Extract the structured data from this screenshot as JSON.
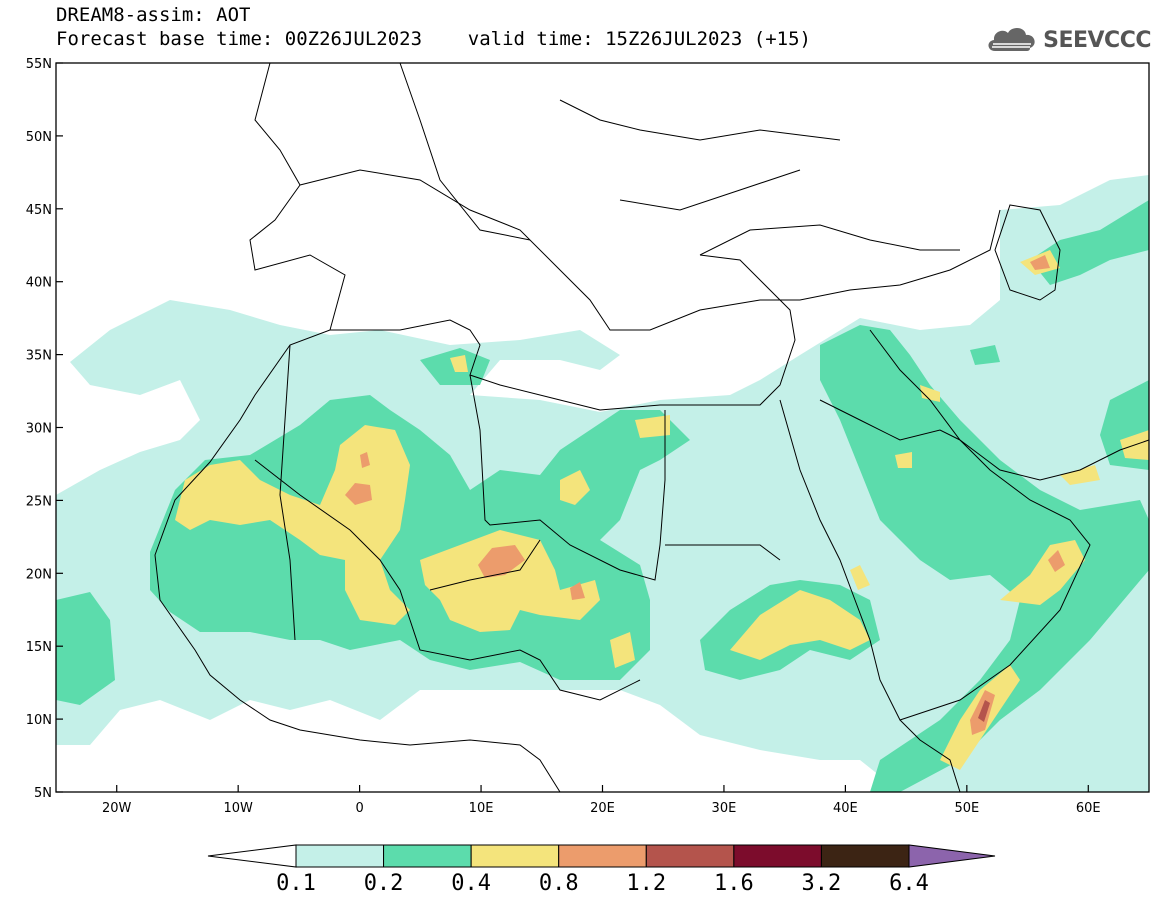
{
  "title": {
    "line1": "DREAM8-assim: AOT",
    "line2": "Forecast base time: 00Z26JUL2023    valid time: 15Z26JUL2023 (+15)"
  },
  "logo": {
    "icon": "cloud-icon",
    "text": "SEEVCCC"
  },
  "map": {
    "lat_range": [
      5,
      55
    ],
    "lon_range": [
      -25,
      65
    ],
    "lat_ticks": [
      {
        "value": 5,
        "label": "5N"
      },
      {
        "value": 10,
        "label": "10N"
      },
      {
        "value": 15,
        "label": "15N"
      },
      {
        "value": 20,
        "label": "20N"
      },
      {
        "value": 25,
        "label": "25N"
      },
      {
        "value": 30,
        "label": "30N"
      },
      {
        "value": 35,
        "label": "35N"
      },
      {
        "value": 40,
        "label": "40N"
      },
      {
        "value": 45,
        "label": "45N"
      },
      {
        "value": 50,
        "label": "50N"
      },
      {
        "value": 55,
        "label": "55N"
      }
    ],
    "lon_ticks": [
      {
        "value": -20,
        "label": "20W"
      },
      {
        "value": -10,
        "label": "10W"
      },
      {
        "value": 0,
        "label": "0"
      },
      {
        "value": 10,
        "label": "10E"
      },
      {
        "value": 20,
        "label": "20E"
      },
      {
        "value": 30,
        "label": "30E"
      },
      {
        "value": 40,
        "label": "40E"
      },
      {
        "value": 50,
        "label": "50E"
      },
      {
        "value": 60,
        "label": "60E"
      }
    ]
  },
  "colorbar": {
    "colors": [
      "#ffffff",
      "#c4f0e8",
      "#5cdcac",
      "#f4e47c",
      "#ec9c6c",
      "#b4544c",
      "#7c0c2c",
      "#3c2414",
      "#8c64ac"
    ],
    "labels": [
      "0.1",
      "0.2",
      "0.4",
      "0.8",
      "1.2",
      "1.6",
      "3.2",
      "6.4"
    ]
  }
}
